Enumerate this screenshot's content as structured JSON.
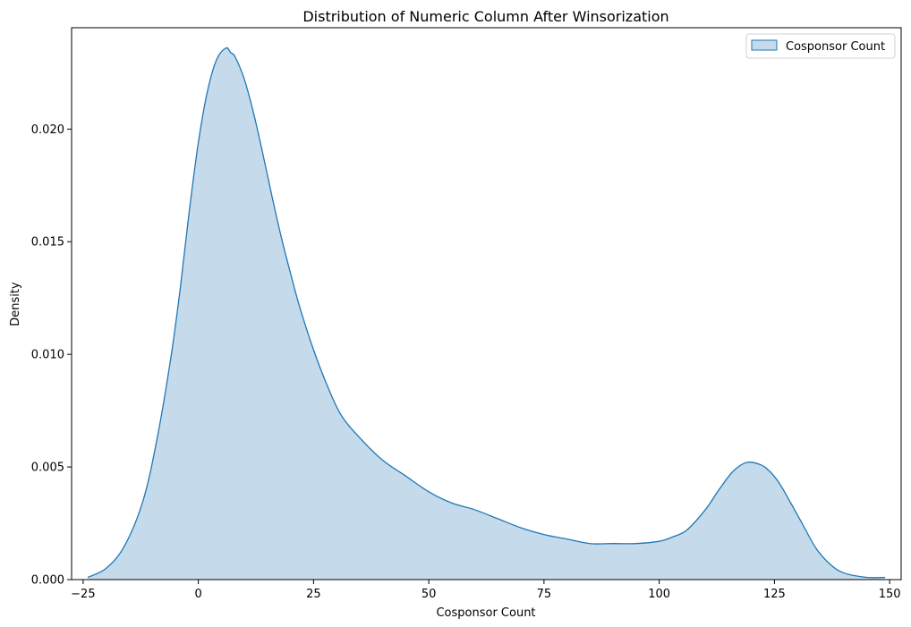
{
  "chart_data": {
    "type": "area",
    "title": "Distribution of Numeric Column After Winsorization",
    "xlabel": "Cosponsor Count",
    "ylabel": "Density",
    "xlim": [
      -27.5,
      152.5
    ],
    "ylim": [
      0,
      0.0245
    ],
    "x_ticks": [
      -25,
      0,
      25,
      50,
      75,
      100,
      125,
      150
    ],
    "x_tick_labels": [
      "−25",
      "0",
      "25",
      "50",
      "75",
      "100",
      "125",
      "150"
    ],
    "y_ticks": [
      0.0,
      0.005,
      0.01,
      0.015,
      0.02
    ],
    "y_tick_labels": [
      "0.000",
      "0.005",
      "0.010",
      "0.015",
      "0.020"
    ],
    "grid": false,
    "legend_position": "upper right",
    "series": [
      {
        "name": "Cosponsor Count",
        "color": "#1f77b4",
        "fill_color": "#c5dbec",
        "x": [
          -24,
          -20,
          -16,
          -12,
          -9,
          -6,
          -4,
          -2,
          0,
          2,
          4,
          6,
          7,
          8,
          10,
          12,
          14,
          16,
          18,
          20,
          22,
          25,
          28,
          31,
          35,
          40,
          45,
          50,
          55,
          60,
          65,
          70,
          75,
          80,
          85,
          90,
          95,
          100,
          103,
          106,
          110,
          113,
          116,
          119,
          122,
          124,
          126,
          128,
          131,
          134,
          137,
          140,
          145,
          149
        ],
        "y": [
          0.0001,
          0.0005,
          0.0015,
          0.0035,
          0.0062,
          0.0098,
          0.0128,
          0.0163,
          0.0194,
          0.0217,
          0.0231,
          0.0236,
          0.0234,
          0.0232,
          0.0222,
          0.0207,
          0.0189,
          0.017,
          0.0152,
          0.0136,
          0.0121,
          0.0102,
          0.0086,
          0.0073,
          0.0063,
          0.0053,
          0.0046,
          0.0039,
          0.0034,
          0.0031,
          0.0027,
          0.0023,
          0.002,
          0.0018,
          0.0016,
          0.0016,
          0.0016,
          0.0017,
          0.0019,
          0.0022,
          0.0031,
          0.004,
          0.0048,
          0.0052,
          0.0051,
          0.0048,
          0.0043,
          0.0036,
          0.0025,
          0.0014,
          0.0007,
          0.0003,
          0.0001,
          0.0001
        ]
      }
    ]
  }
}
